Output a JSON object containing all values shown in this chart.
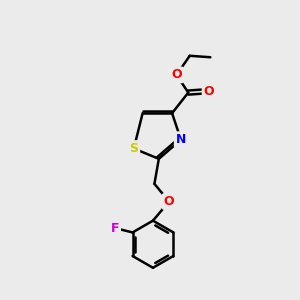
{
  "bg_color": "#ebebeb",
  "bond_color": "#000000",
  "bond_width": 1.8,
  "atom_colors": {
    "S": "#cccc00",
    "N": "#0000ff",
    "O": "#ff0000",
    "F": "#cc00cc",
    "C": "#000000"
  },
  "font_size": 9,
  "fig_size": [
    3.0,
    3.0
  ],
  "dpi": 100
}
